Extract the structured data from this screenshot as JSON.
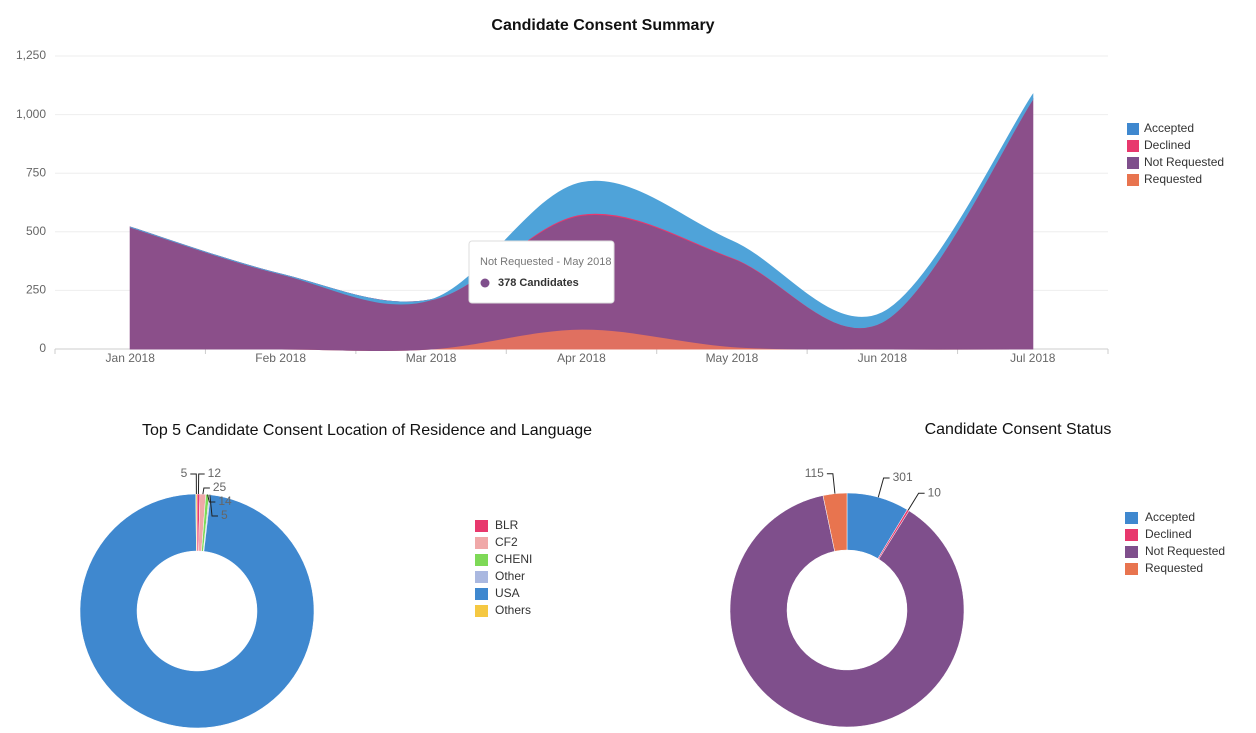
{
  "chart_data": [
    {
      "type": "area",
      "title": "Candidate Consent Summary",
      "categories": [
        "Jan 2018",
        "Feb 2018",
        "Mar 2018",
        "Apr 2018",
        "May 2018",
        "Jun 2018",
        "Jul 2018"
      ],
      "series": [
        {
          "name": "Accepted",
          "color": "#4fa3d9",
          "legend_color": "#3f88cf",
          "values": [
            0,
            0,
            0,
            135,
            70,
            40,
            20
          ]
        },
        {
          "name": "Declined",
          "color": "#e8386d",
          "legend_color": "#e8386d",
          "values": [
            0,
            0,
            0,
            5,
            3,
            0,
            0
          ]
        },
        {
          "name": "Not Requested",
          "color": "#8b4f8a",
          "legend_color": "#7f4f8c",
          "values": [
            520,
            320,
            210,
            485,
            378,
            115,
            1065
          ]
        },
        {
          "name": "Requested",
          "color": "#e07060",
          "legend_color": "#e8744f",
          "values": [
            0,
            0,
            0,
            85,
            10,
            0,
            0
          ]
        }
      ],
      "ylim": [
        0,
        1250
      ],
      "yticks": [
        0,
        250,
        500,
        750,
        {
          "value": 1000,
          "label": "1,000"
        },
        {
          "value": 1250,
          "label": "1,250"
        }
      ],
      "grid": true,
      "legend": "right",
      "tooltip": {
        "title": "Not Requested - May 2018",
        "text": "378 Candidates"
      }
    },
    {
      "type": "donut",
      "title": "Top 5 Candidate Consent Location of Residence and Language",
      "categories": [
        "BLR",
        "CF2",
        "CHENI",
        "Other",
        "USA",
        "Others"
      ],
      "values": [
        12,
        25,
        14,
        5,
        3000,
        5
      ],
      "value_labels": [
        "12",
        "25",
        "14",
        "5",
        null,
        "5"
      ],
      "colors": [
        "#e8386d",
        "#f0a8a8",
        "#7ed957",
        "#aab8e0",
        "#3f88cf",
        "#f5c842"
      ],
      "legend": "right"
    },
    {
      "type": "donut",
      "title": "Candidate Consent Status",
      "categories": [
        "Accepted",
        "Declined",
        "Not Requested",
        "Requested"
      ],
      "values": [
        301,
        10,
        3070,
        115
      ],
      "value_labels": [
        "301",
        "10",
        null,
        "115"
      ],
      "colors": [
        "#3f88cf",
        "#e8386d",
        "#7f4f8c",
        "#e8744f"
      ],
      "legend": "right"
    }
  ]
}
